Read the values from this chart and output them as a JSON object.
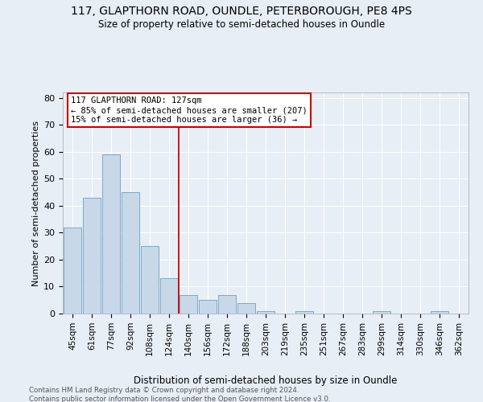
{
  "title_line1": "117, GLAPTHORN ROAD, OUNDLE, PETERBOROUGH, PE8 4PS",
  "title_line2": "Size of property relative to semi-detached houses in Oundle",
  "xlabel": "Distribution of semi-detached houses by size in Oundle",
  "ylabel": "Number of semi-detached properties",
  "categories": [
    "45sqm",
    "61sqm",
    "77sqm",
    "92sqm",
    "108sqm",
    "124sqm",
    "140sqm",
    "156sqm",
    "172sqm",
    "188sqm",
    "203sqm",
    "219sqm",
    "235sqm",
    "251sqm",
    "267sqm",
    "283sqm",
    "299sqm",
    "314sqm",
    "330sqm",
    "346sqm",
    "362sqm"
  ],
  "values": [
    32,
    43,
    59,
    45,
    25,
    13,
    7,
    5,
    7,
    4,
    1,
    0,
    1,
    0,
    0,
    0,
    1,
    0,
    0,
    1,
    0
  ],
  "bar_color": "#c8d8e8",
  "bar_edge_color": "#7aaac8",
  "vline_x": 5.5,
  "annotation_line1": "117 GLAPTHORN ROAD: 127sqm",
  "annotation_line2": "← 85% of semi-detached houses are smaller (207)",
  "annotation_line3": "15% of semi-detached houses are larger (36) →",
  "vline_color": "#cc0000",
  "annotation_box_edge_color": "#cc0000",
  "ylim": [
    0,
    82
  ],
  "yticks": [
    0,
    10,
    20,
    30,
    40,
    50,
    60,
    70,
    80
  ],
  "background_color": "#e8eef5",
  "plot_bg_color": "#e8eef5",
  "footer_line1": "Contains HM Land Registry data © Crown copyright and database right 2024.",
  "footer_line2": "Contains public sector information licensed under the Open Government Licence v3.0."
}
